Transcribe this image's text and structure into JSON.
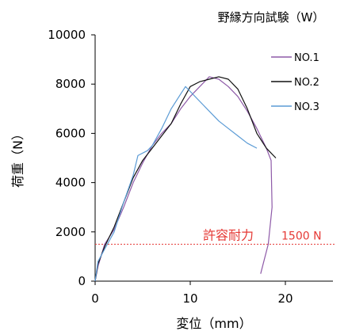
{
  "chart_data": {
    "type": "line",
    "title": "野縁方向試験（W）",
    "xlabel": "変位（mm）",
    "ylabel": "荷重（N）",
    "xlim": [
      0,
      25
    ],
    "ylim": [
      0,
      10000
    ],
    "xticks": [
      "0",
      "10",
      "20"
    ],
    "yticks": [
      "0",
      "2000",
      "4000",
      "6000",
      "8000",
      "10000"
    ],
    "xtick_values": [
      0,
      10,
      20
    ],
    "ytick_values": [
      0,
      2000,
      4000,
      6000,
      8000,
      10000
    ],
    "grid": false,
    "legend_position": "top-right",
    "series": [
      {
        "name": "NO.1",
        "color": "#8e5aa8",
        "points": [
          [
            0,
            0
          ],
          [
            0.3,
            600
          ],
          [
            1,
            1500
          ],
          [
            2,
            2100
          ],
          [
            3,
            3000
          ],
          [
            4,
            4000
          ],
          [
            5,
            4800
          ],
          [
            6,
            5500
          ],
          [
            7,
            6000
          ],
          [
            8,
            6400
          ],
          [
            9,
            7000
          ],
          [
            10,
            7500
          ],
          [
            11,
            7900
          ],
          [
            12,
            8300
          ],
          [
            13,
            8200
          ],
          [
            14,
            7900
          ],
          [
            15,
            7500
          ],
          [
            16,
            6900
          ],
          [
            17,
            6200
          ],
          [
            18,
            5400
          ],
          [
            18.5,
            4900
          ],
          [
            18.6,
            3000
          ],
          [
            18.2,
            1500
          ],
          [
            17.6,
            600
          ],
          [
            17.4,
            300
          ]
        ]
      },
      {
        "name": "NO.2",
        "color": "#111111",
        "points": [
          [
            0,
            0
          ],
          [
            0.3,
            700
          ],
          [
            1,
            1400
          ],
          [
            2,
            2200
          ],
          [
            3,
            3200
          ],
          [
            4,
            4200
          ],
          [
            5,
            4900
          ],
          [
            6,
            5400
          ],
          [
            7,
            5900
          ],
          [
            8,
            6400
          ],
          [
            9,
            7200
          ],
          [
            10,
            7900
          ],
          [
            11,
            8100
          ],
          [
            12,
            8200
          ],
          [
            13,
            8300
          ],
          [
            14,
            8200
          ],
          [
            15,
            7800
          ],
          [
            16,
            7000
          ],
          [
            17,
            6000
          ],
          [
            18,
            5400
          ],
          [
            19,
            5000
          ]
        ]
      },
      {
        "name": "NO.3",
        "color": "#5b9bd5",
        "points": [
          [
            0,
            0
          ],
          [
            0.3,
            800
          ],
          [
            1,
            1300
          ],
          [
            2,
            2000
          ],
          [
            3,
            3200
          ],
          [
            4,
            4300
          ],
          [
            4.5,
            5100
          ],
          [
            5.5,
            5300
          ],
          [
            6,
            5500
          ],
          [
            7,
            6200
          ],
          [
            8,
            7000
          ],
          [
            9,
            7600
          ],
          [
            9.5,
            7900
          ],
          [
            10,
            7700
          ],
          [
            11,
            7300
          ],
          [
            12,
            6900
          ],
          [
            13,
            6500
          ],
          [
            14,
            6200
          ],
          [
            15,
            5900
          ],
          [
            16,
            5600
          ],
          [
            17,
            5400
          ]
        ]
      }
    ],
    "annotations": [
      {
        "type": "hline",
        "y": 1500,
        "color": "#e53935",
        "style": "dotted",
        "label": "許容耐力 ",
        "value_label": "1500 N"
      }
    ]
  }
}
